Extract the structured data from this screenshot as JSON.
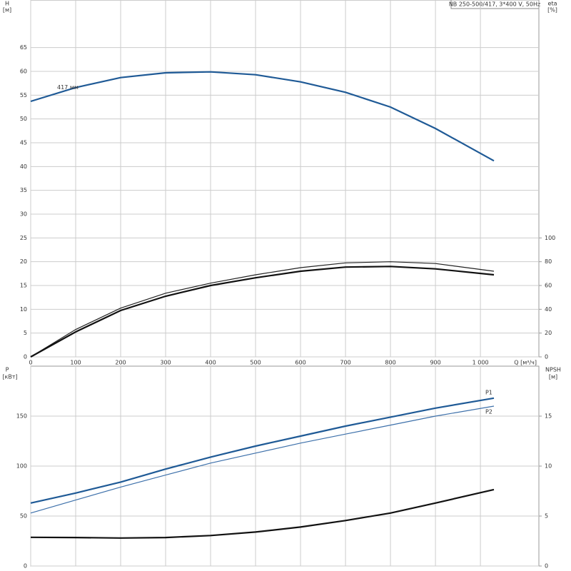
{
  "chart_data": [
    {
      "type": "line",
      "title": "NB 250-500/417, 3*400 V, 50Hz",
      "ylabel": "H",
      "yunit": "[м]",
      "y2label": "eta",
      "y2unit": "[%]",
      "xlabel": "Q [м³/ч]",
      "x": [
        0,
        100,
        200,
        300,
        400,
        500,
        600,
        700,
        800,
        900,
        1030
      ],
      "xlim": [
        0,
        1130
      ],
      "xticks": [
        0,
        100,
        200,
        300,
        400,
        500,
        600,
        700,
        800,
        900,
        {
          "value": 1000,
          "label": "1 000"
        }
      ],
      "ylim": [
        0,
        75
      ],
      "yticks": [
        0,
        5,
        10,
        15,
        20,
        25,
        30,
        35,
        40,
        45,
        50,
        55,
        60,
        65
      ],
      "y2lim": [
        0,
        300
      ],
      "y2ticks": [
        0,
        20,
        40,
        60,
        80,
        100
      ],
      "grid": true,
      "series": [
        {
          "name": "417 мм",
          "label_at": "start",
          "color": "#1f5a96",
          "width": 2.2,
          "values": [
            53.7,
            56.6,
            58.7,
            59.7,
            59.9,
            59.3,
            57.8,
            55.6,
            52.5,
            48.0,
            41.2
          ]
        },
        {
          "color": "#222222",
          "width": 1.2,
          "axis": "y2",
          "values": [
            0,
            23,
            41,
            53.5,
            62,
            69,
            75,
            79,
            80,
            78.5,
            72
          ]
        },
        {
          "color": "#111111",
          "width": 2.2,
          "axis": "y2",
          "values": [
            0,
            21,
            39,
            51,
            60,
            66.5,
            72,
            75.5,
            76,
            74,
            69
          ]
        }
      ]
    },
    {
      "type": "line",
      "ylabel": "P",
      "yunit": "[кВт]",
      "y2label": "NPSH",
      "y2unit": "[м]",
      "x": [
        0,
        100,
        200,
        300,
        400,
        500,
        600,
        700,
        800,
        900,
        1030
      ],
      "xlim": [
        0,
        1130
      ],
      "ylim": [
        0,
        200
      ],
      "yticks": [
        0,
        50,
        100,
        150
      ],
      "y2lim": [
        0,
        20
      ],
      "y2ticks": [
        0,
        5,
        10,
        15
      ],
      "grid": true,
      "series": [
        {
          "name": "P1",
          "label_at": "end",
          "color": "#1f5a96",
          "width": 2.2,
          "values": [
            63,
            73,
            84,
            97,
            109,
            120,
            130,
            140,
            149,
            158,
            168
          ]
        },
        {
          "name": "P2",
          "label_at": "end",
          "color": "#3d70aa",
          "width": 1.2,
          "values": [
            53,
            66,
            79,
            91,
            103,
            113,
            123,
            132,
            141,
            150,
            160
          ]
        },
        {
          "color": "#111111",
          "width": 2.2,
          "axis": "y2",
          "values": [
            2.87,
            2.85,
            2.8,
            2.85,
            3.05,
            3.4,
            3.9,
            4.55,
            5.3,
            6.3,
            7.65
          ]
        }
      ]
    }
  ]
}
